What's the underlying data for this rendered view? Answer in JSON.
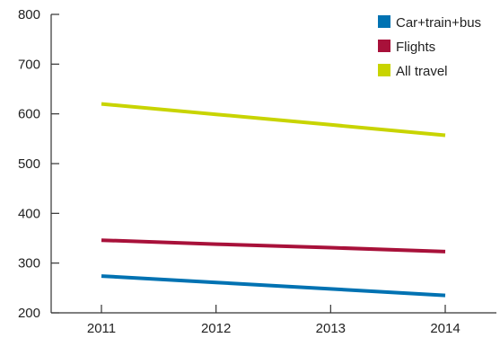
{
  "chart_data": {
    "type": "line",
    "title": "",
    "xlabel": "",
    "ylabel": "",
    "x": [
      "2011",
      "2012",
      "2013",
      "2014"
    ],
    "ylim": [
      200,
      800
    ],
    "yticks": [
      200,
      300,
      400,
      500,
      600,
      700,
      800
    ],
    "grid": false,
    "legend_position": "top-right",
    "series": [
      {
        "name": "Car+train+bus",
        "color": "#0072b2",
        "values": [
          274,
          261,
          248,
          235
        ]
      },
      {
        "name": "Flights",
        "color": "#a8113a",
        "values": [
          346,
          338,
          331,
          323
        ]
      },
      {
        "name": "All travel",
        "color": "#c8d400",
        "values": [
          620,
          599,
          578,
          557
        ]
      }
    ]
  }
}
